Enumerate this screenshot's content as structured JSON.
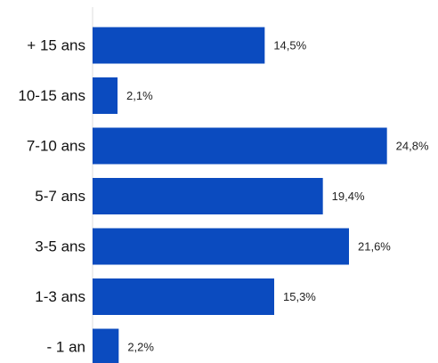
{
  "chart_data": {
    "type": "bar",
    "orientation": "horizontal",
    "categories": [
      "+ 15 ans",
      "10-15 ans",
      "7-10 ans",
      "5-7 ans",
      "3-5 ans",
      "1-3 ans",
      "- 1 an"
    ],
    "values": [
      14.5,
      2.1,
      24.8,
      19.4,
      21.6,
      15.3,
      2.2
    ],
    "value_labels": [
      "14,5%",
      "2,1%",
      "24,8%",
      "19,4%",
      "21,6%",
      "15,3%",
      "2,2%"
    ],
    "unit": "%",
    "xlim": [
      0,
      25.5
    ],
    "grid": false,
    "legend": "none",
    "bar_color": "#0b4bbf",
    "axis_color": "#dddddd"
  }
}
